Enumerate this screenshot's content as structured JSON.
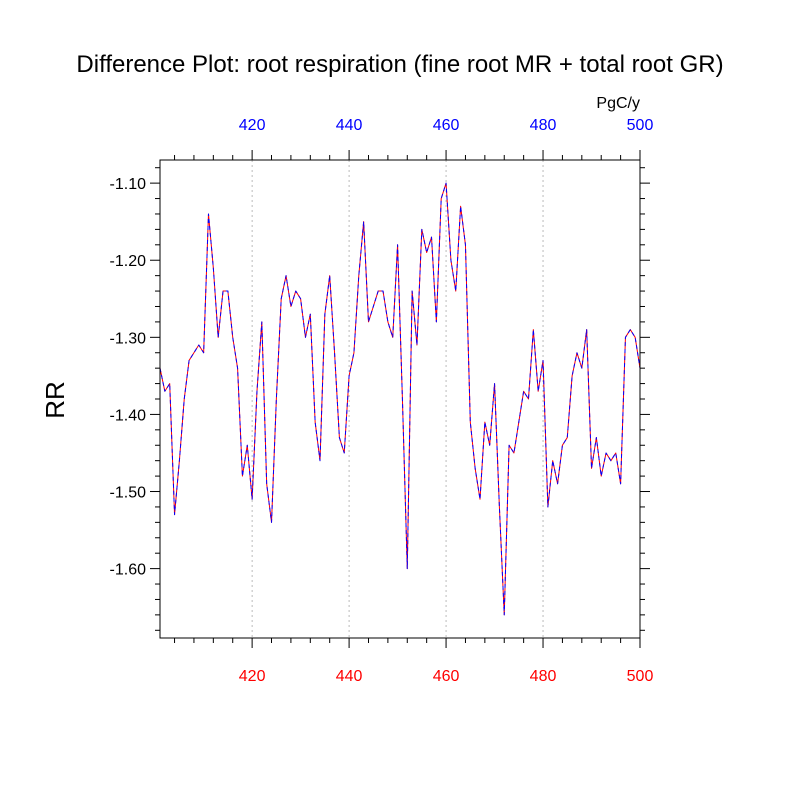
{
  "chart_data": {
    "type": "line",
    "title": "Difference Plot: root respiration (fine root MR + total root GR)",
    "units": "PgC/y",
    "ylabel": "RR",
    "xlabel": "",
    "xlim": [
      401,
      500
    ],
    "ylim": [
      -1.69,
      -1.07
    ],
    "x_ticks": [
      420,
      440,
      460,
      480,
      500
    ],
    "x_tick_labels": [
      "420",
      "440",
      "460",
      "480",
      "500"
    ],
    "y_ticks": [
      -1.6,
      -1.5,
      -1.4,
      -1.3,
      -1.2,
      -1.1
    ],
    "y_tick_labels": [
      "-1.60",
      "-1.50",
      "-1.40",
      "-1.30",
      "-1.20",
      "-1.10"
    ],
    "x_minor_step": 4,
    "y_minor_step": 0.02,
    "vertical_grid": true,
    "top_axis_color": "#0000ff",
    "bottom_axis_color": "#ff0000",
    "series": [
      {
        "line_color": "#ff0000",
        "dash": false,
        "x": [
          401,
          402,
          403,
          404,
          405,
          406,
          407,
          408,
          409,
          410,
          411,
          412,
          413,
          414,
          415,
          416,
          417,
          418,
          419,
          420,
          421,
          422,
          423,
          424,
          425,
          426,
          427,
          428,
          429,
          430,
          431,
          432,
          433,
          434,
          435,
          436,
          437,
          438,
          439,
          440,
          441,
          442,
          443,
          444,
          445,
          446,
          447,
          448,
          449,
          450,
          451,
          452,
          453,
          454,
          455,
          456,
          457,
          458,
          459,
          460,
          461,
          462,
          463,
          464,
          465,
          466,
          467,
          468,
          469,
          470,
          471,
          472,
          473,
          474,
          475,
          476,
          477,
          478,
          479,
          480,
          481,
          482,
          483,
          484,
          485,
          486,
          487,
          488,
          489,
          490,
          491,
          492,
          493,
          494,
          495,
          496,
          497,
          498,
          499,
          500
        ],
        "y": [
          -1.34,
          -1.37,
          -1.36,
          -1.53,
          -1.46,
          -1.38,
          -1.33,
          -1.32,
          -1.31,
          -1.32,
          -1.14,
          -1.21,
          -1.3,
          -1.24,
          -1.24,
          -1.3,
          -1.34,
          -1.48,
          -1.44,
          -1.51,
          -1.37,
          -1.28,
          -1.49,
          -1.54,
          -1.38,
          -1.25,
          -1.22,
          -1.26,
          -1.24,
          -1.25,
          -1.3,
          -1.27,
          -1.41,
          -1.46,
          -1.27,
          -1.22,
          -1.32,
          -1.43,
          -1.45,
          -1.35,
          -1.32,
          -1.22,
          -1.15,
          -1.28,
          -1.26,
          -1.24,
          -1.24,
          -1.28,
          -1.3,
          -1.18,
          -1.38,
          -1.6,
          -1.24,
          -1.31,
          -1.16,
          -1.19,
          -1.17,
          -1.28,
          -1.12,
          -1.1,
          -1.2,
          -1.24,
          -1.13,
          -1.18,
          -1.41,
          -1.47,
          -1.51,
          -1.41,
          -1.44,
          -1.36,
          -1.52,
          -1.66,
          -1.44,
          -1.45,
          -1.41,
          -1.37,
          -1.38,
          -1.29,
          -1.37,
          -1.33,
          -1.52,
          -1.46,
          -1.49,
          -1.44,
          -1.43,
          -1.35,
          -1.32,
          -1.34,
          -1.29,
          -1.47,
          -1.43,
          -1.48,
          -1.45,
          -1.46,
          -1.45,
          -1.49,
          -1.3,
          -1.29,
          -1.3,
          -1.34
        ]
      },
      {
        "line_color": "#0000ff",
        "dash": true,
        "x": [
          401,
          402,
          403,
          404,
          405,
          406,
          407,
          408,
          409,
          410,
          411,
          412,
          413,
          414,
          415,
          416,
          417,
          418,
          419,
          420,
          421,
          422,
          423,
          424,
          425,
          426,
          427,
          428,
          429,
          430,
          431,
          432,
          433,
          434,
          435,
          436,
          437,
          438,
          439,
          440,
          441,
          442,
          443,
          444,
          445,
          446,
          447,
          448,
          449,
          450,
          451,
          452,
          453,
          454,
          455,
          456,
          457,
          458,
          459,
          460,
          461,
          462,
          463,
          464,
          465,
          466,
          467,
          468,
          469,
          470,
          471,
          472,
          473,
          474,
          475,
          476,
          477,
          478,
          479,
          480,
          481,
          482,
          483,
          484,
          485,
          486,
          487,
          488,
          489,
          490,
          491,
          492,
          493,
          494,
          495,
          496,
          497,
          498,
          499,
          500
        ],
        "y": [
          -1.34,
          -1.37,
          -1.36,
          -1.53,
          -1.46,
          -1.38,
          -1.33,
          -1.32,
          -1.31,
          -1.32,
          -1.14,
          -1.21,
          -1.3,
          -1.24,
          -1.24,
          -1.3,
          -1.34,
          -1.48,
          -1.44,
          -1.51,
          -1.37,
          -1.28,
          -1.49,
          -1.54,
          -1.38,
          -1.25,
          -1.22,
          -1.26,
          -1.24,
          -1.25,
          -1.3,
          -1.27,
          -1.41,
          -1.46,
          -1.27,
          -1.22,
          -1.32,
          -1.43,
          -1.45,
          -1.35,
          -1.32,
          -1.22,
          -1.15,
          -1.28,
          -1.26,
          -1.24,
          -1.24,
          -1.28,
          -1.3,
          -1.18,
          -1.38,
          -1.6,
          -1.24,
          -1.31,
          -1.16,
          -1.19,
          -1.17,
          -1.28,
          -1.12,
          -1.1,
          -1.2,
          -1.24,
          -1.13,
          -1.18,
          -1.41,
          -1.47,
          -1.51,
          -1.41,
          -1.44,
          -1.36,
          -1.52,
          -1.66,
          -1.44,
          -1.45,
          -1.41,
          -1.37,
          -1.38,
          -1.29,
          -1.37,
          -1.33,
          -1.52,
          -1.46,
          -1.49,
          -1.44,
          -1.43,
          -1.35,
          -1.32,
          -1.34,
          -1.29,
          -1.47,
          -1.43,
          -1.48,
          -1.45,
          -1.46,
          -1.45,
          -1.49,
          -1.3,
          -1.29,
          -1.3,
          -1.34
        ]
      }
    ]
  }
}
